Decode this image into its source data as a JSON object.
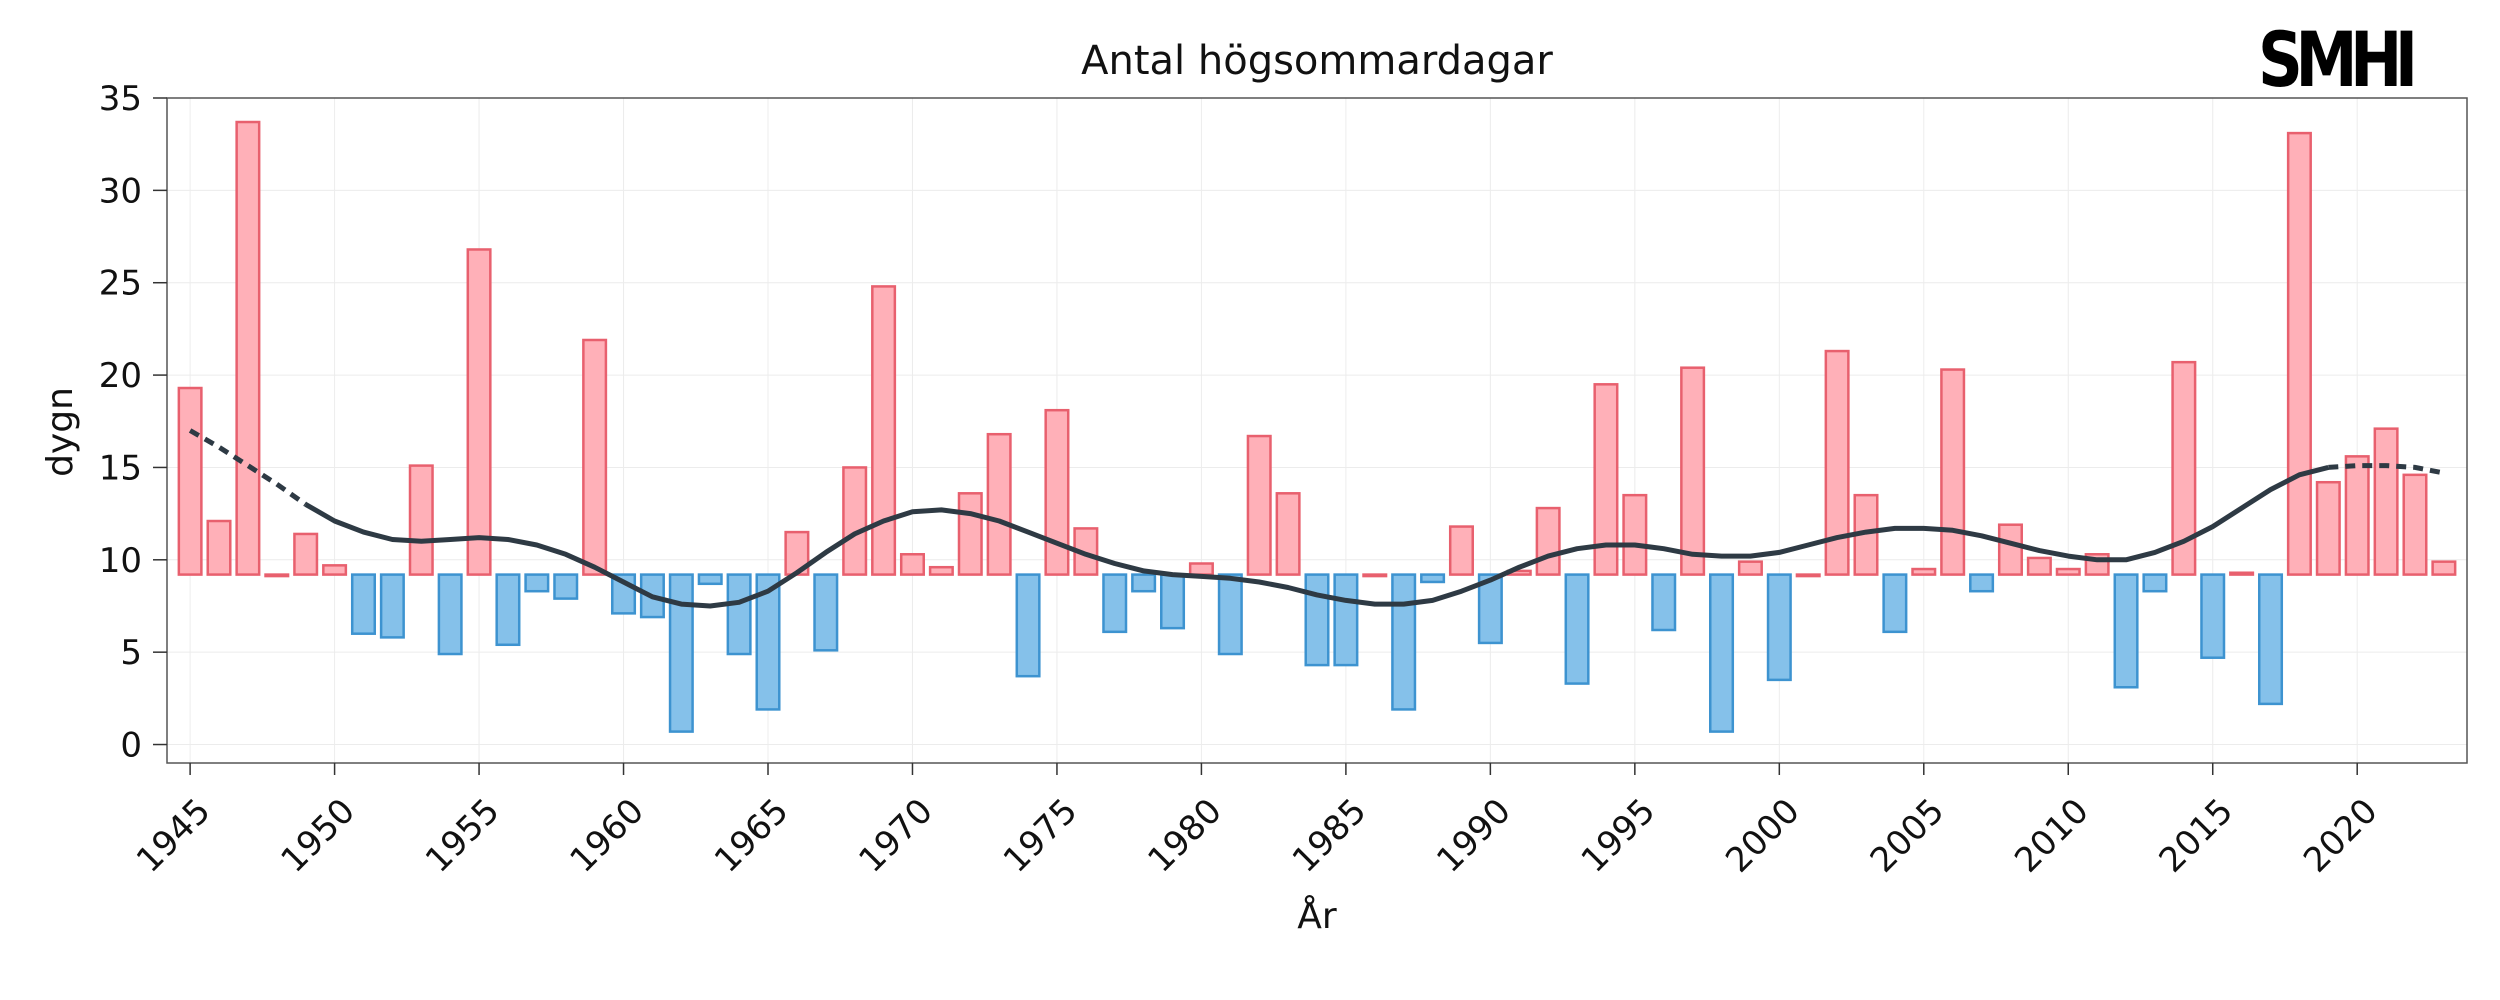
{
  "logo_text": "SMHI",
  "chart_data": {
    "type": "bar",
    "title": "Antal högsommardagar",
    "xlabel": "År",
    "ylabel": "dygn",
    "baseline": 9.2,
    "ylim": [
      -1,
      35
    ],
    "xlim": [
      1944.2,
      2023.8
    ],
    "yticks": [
      0,
      5,
      10,
      15,
      20,
      25,
      30,
      35
    ],
    "xticks": [
      1945,
      1950,
      1955,
      1960,
      1965,
      1970,
      1975,
      1980,
      1985,
      1990,
      1995,
      2000,
      2005,
      2010,
      2015,
      2020
    ],
    "grid": true,
    "colors": {
      "above_fill": "#ffb0b8",
      "above_stroke": "#e8606e",
      "below_fill": "#85c1ea",
      "below_stroke": "#3d93d0",
      "trend": "#2e3a44"
    },
    "years": [
      1945,
      1946,
      1947,
      1948,
      1949,
      1950,
      1951,
      1952,
      1953,
      1954,
      1955,
      1956,
      1957,
      1958,
      1959,
      1960,
      1961,
      1962,
      1963,
      1964,
      1965,
      1966,
      1967,
      1968,
      1969,
      1970,
      1971,
      1972,
      1973,
      1974,
      1975,
      1976,
      1977,
      1978,
      1979,
      1980,
      1981,
      1982,
      1983,
      1984,
      1985,
      1986,
      1987,
      1988,
      1989,
      1990,
      1991,
      1992,
      1993,
      1994,
      1995,
      1996,
      1997,
      1998,
      1999,
      2000,
      2001,
      2002,
      2003,
      2004,
      2005,
      2006,
      2007,
      2008,
      2009,
      2010,
      2011,
      2012,
      2013,
      2014,
      2015,
      2016,
      2017,
      2018,
      2019,
      2020,
      2021,
      2022,
      2023
    ],
    "values": [
      19.3,
      12.1,
      33.7,
      9.2,
      11.4,
      9.7,
      6.0,
      5.8,
      15.1,
      4.9,
      26.8,
      5.4,
      8.3,
      7.9,
      21.9,
      7.1,
      6.9,
      0.7,
      8.7,
      4.9,
      1.9,
      11.5,
      5.1,
      15.0,
      24.8,
      10.3,
      9.6,
      13.6,
      16.8,
      3.7,
      18.1,
      11.7,
      6.1,
      8.3,
      6.3,
      9.8,
      4.9,
      16.7,
      13.6,
      4.3,
      4.3,
      9.2,
      1.9,
      8.8,
      11.8,
      5.5,
      9.4,
      12.8,
      3.3,
      19.5,
      13.5,
      6.2,
      20.4,
      0.7,
      9.9,
      3.5,
      9.2,
      21.3,
      13.5,
      6.1,
      9.5,
      20.3,
      8.3,
      11.9,
      10.1,
      9.5,
      10.3,
      3.1,
      8.3,
      20.7,
      4.7,
      9.3,
      2.2,
      33.1,
      14.2,
      15.6,
      17.1,
      14.6,
      9.9
    ],
    "trend": {
      "x": [
        1945,
        1946,
        1947,
        1948,
        1949,
        1950,
        1951,
        1952,
        1953,
        1954,
        1955,
        1956,
        1957,
        1958,
        1959,
        1960,
        1961,
        1962,
        1963,
        1964,
        1965,
        1966,
        1967,
        1968,
        1969,
        1970,
        1971,
        1972,
        1973,
        1974,
        1975,
        1976,
        1977,
        1978,
        1979,
        1980,
        1981,
        1982,
        1983,
        1984,
        1985,
        1986,
        1987,
        1988,
        1989,
        1990,
        1991,
        1992,
        1993,
        1994,
        1995,
        1996,
        1997,
        1998,
        1999,
        2000,
        2001,
        2002,
        2003,
        2004,
        2005,
        2006,
        2007,
        2008,
        2009,
        2010,
        2011,
        2012,
        2013,
        2014,
        2015,
        2016,
        2017,
        2018,
        2019,
        2020,
        2021,
        2022,
        2023
      ],
      "y": [
        17.0,
        16.1,
        15.1,
        14.1,
        13.0,
        12.1,
        11.5,
        11.1,
        11.0,
        11.1,
        11.2,
        11.1,
        10.8,
        10.3,
        9.6,
        8.8,
        8.0,
        7.6,
        7.5,
        7.7,
        8.3,
        9.3,
        10.4,
        11.4,
        12.1,
        12.6,
        12.7,
        12.5,
        12.1,
        11.5,
        10.9,
        10.3,
        9.8,
        9.4,
        9.2,
        9.1,
        9.0,
        8.8,
        8.5,
        8.1,
        7.8,
        7.6,
        7.6,
        7.8,
        8.3,
        8.9,
        9.6,
        10.2,
        10.6,
        10.8,
        10.8,
        10.6,
        10.3,
        10.2,
        10.2,
        10.4,
        10.8,
        11.2,
        11.5,
        11.7,
        11.7,
        11.6,
        11.3,
        10.9,
        10.5,
        10.2,
        10.0,
        10.0,
        10.4,
        11.0,
        11.8,
        12.8,
        13.8,
        14.6,
        15.0,
        15.1,
        15.1,
        15.0,
        14.7
      ],
      "dashed_start_end": 1949,
      "dashed_end_start": 2019
    }
  }
}
